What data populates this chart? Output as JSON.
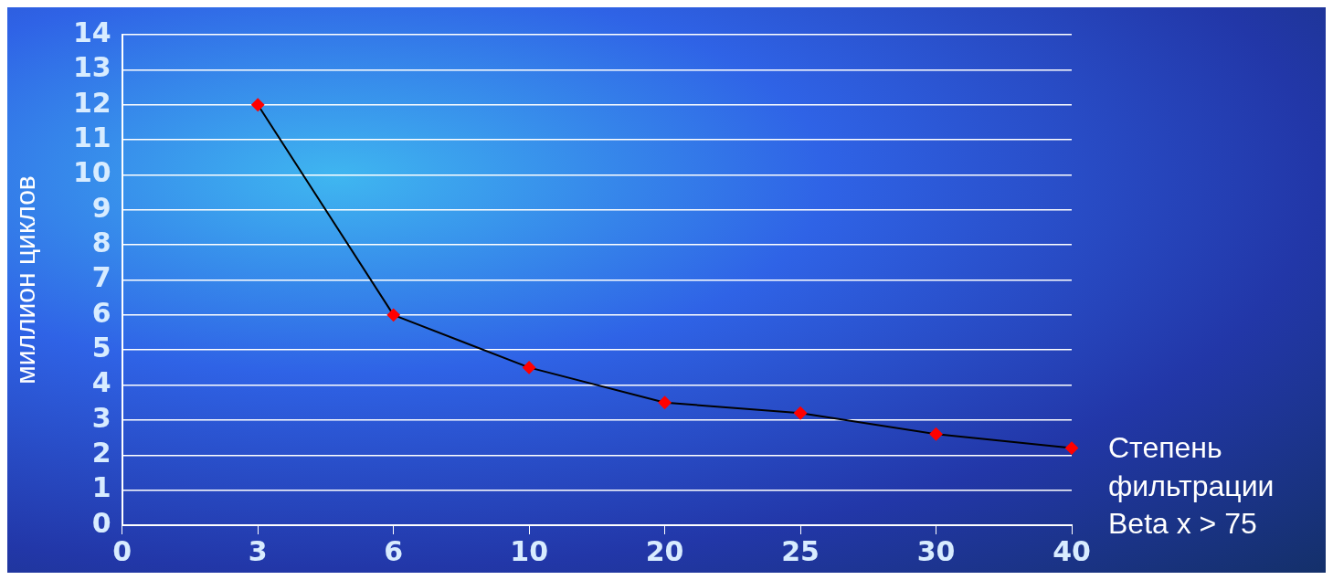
{
  "chart_data": {
    "type": "line",
    "ylabel": "миллион циклов",
    "xlabel": "Степень фильтрации Beta x > 75",
    "categories": [
      "0",
      "3",
      "6",
      "10",
      "20",
      "25",
      "30",
      "40"
    ],
    "series": [
      {
        "color": "#000000",
        "values": [
          null,
          12,
          6,
          4.5,
          3.5,
          3.2,
          2.6,
          2.2
        ]
      }
    ],
    "marker": "diamond",
    "line_style": "solid",
    "ylim": [
      0,
      14
    ],
    "yticks": [
      0,
      1,
      2,
      3,
      4,
      5,
      6,
      7,
      8,
      9,
      10,
      11,
      12,
      13,
      14
    ],
    "grid": "y",
    "legend": false
  }
}
